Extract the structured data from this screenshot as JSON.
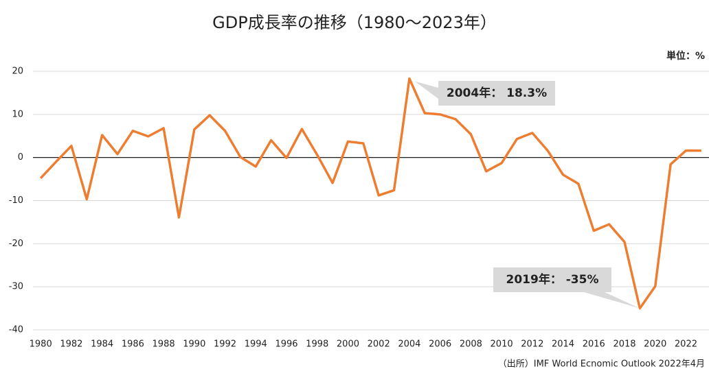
{
  "chart_data": {
    "type": "line",
    "title": "GDP成長率の推移（1980～2023年）",
    "unit_label": "単位：%",
    "source": "（出所）IMF World Ecnomic Outlook 2022年4月",
    "x": [
      1980,
      1981,
      1982,
      1983,
      1984,
      1985,
      1986,
      1987,
      1988,
      1989,
      1990,
      1991,
      1992,
      1993,
      1994,
      1995,
      1996,
      1997,
      1998,
      1999,
      2000,
      2001,
      2002,
      2003,
      2004,
      2005,
      2006,
      2007,
      2008,
      2009,
      2010,
      2011,
      2012,
      2013,
      2014,
      2015,
      2016,
      2017,
      2018,
      2019,
      2020,
      2021,
      2022,
      2023
    ],
    "series": [
      {
        "name": "GDP成長率",
        "color": "#ed7d31",
        "values": [
          -4.8,
          -1.0,
          2.7,
          -9.7,
          5.2,
          0.8,
          6.2,
          4.9,
          6.8,
          -13.9,
          6.5,
          9.8,
          6.2,
          0.1,
          -2.1,
          4.0,
          -0.1,
          6.6,
          0.6,
          -5.9,
          3.7,
          3.3,
          -8.8,
          -7.6,
          18.3,
          10.3,
          10.0,
          8.9,
          5.4,
          -3.2,
          -1.3,
          4.3,
          5.7,
          1.6,
          -4.0,
          -6.1,
          -17.0,
          -15.5,
          -19.6,
          -35,
          -29.9,
          -1.6,
          1.6,
          1.6
        ]
      }
    ],
    "xlim": [
      1979.5,
      2023.5
    ],
    "xticks": [
      1980,
      1982,
      1984,
      1986,
      1988,
      1990,
      1992,
      1994,
      1996,
      1998,
      2000,
      2002,
      2004,
      2006,
      2008,
      2010,
      2012,
      2014,
      2016,
      2018,
      2020,
      2022
    ],
    "ylim": [
      -40,
      20
    ],
    "yticks": [
      -40,
      -30,
      -20,
      -10,
      0,
      10,
      20
    ],
    "grid": true,
    "annotations": [
      {
        "text": "2004年： 18.3%"
      },
      {
        "text": "2019年： -35%"
      }
    ]
  }
}
